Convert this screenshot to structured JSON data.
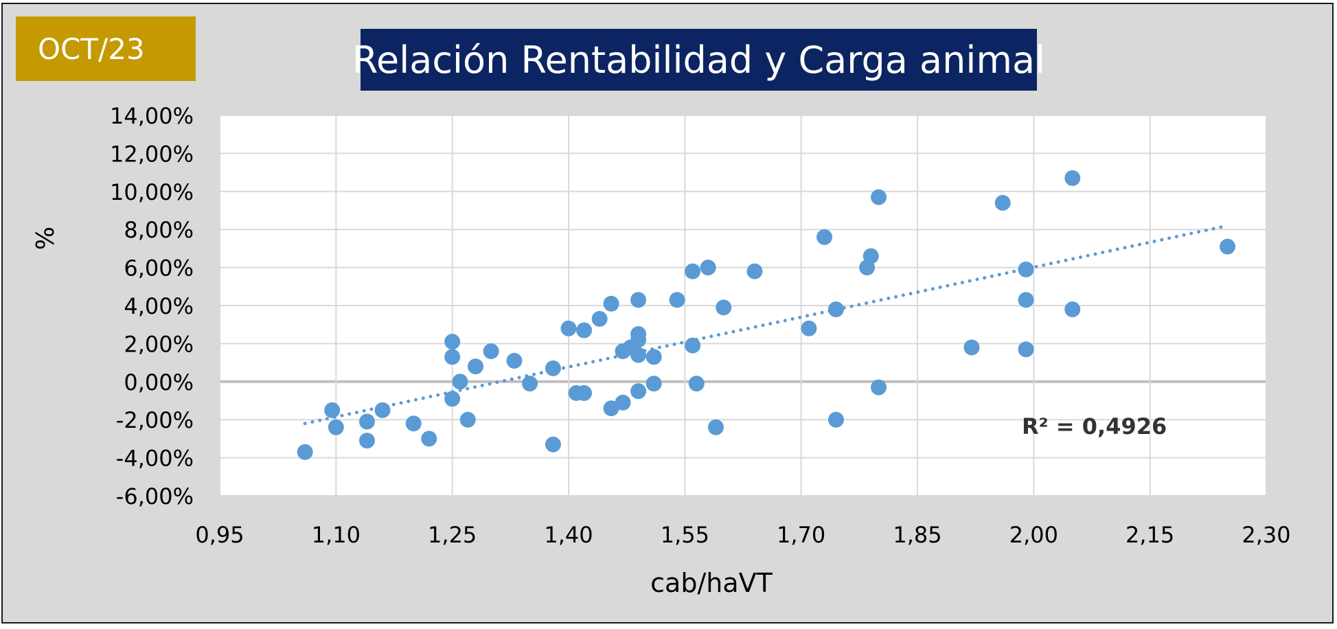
{
  "badge": {
    "label": "OCT/23"
  },
  "chart_data": {
    "type": "scatter",
    "title": "Relación Rentabilidad y Carga animal",
    "xlabel": "cab/haVT",
    "ylabel": "%",
    "xlim": [
      0.95,
      2.3
    ],
    "ylim": [
      -6,
      14
    ],
    "x_ticks": [
      0.95,
      1.1,
      1.25,
      1.4,
      1.55,
      1.7,
      1.85,
      2.0,
      2.15,
      2.3
    ],
    "x_tick_labels": [
      "0,95",
      "1,10",
      "1,25",
      "1,40",
      "1,55",
      "1,70",
      "1,85",
      "2,00",
      "2,15",
      "2,30"
    ],
    "y_ticks": [
      -6,
      -4,
      -2,
      0,
      2,
      4,
      6,
      8,
      10,
      12,
      14
    ],
    "y_tick_labels": [
      "-6,00%",
      "-4,00%",
      "-2,00%",
      "0,00%",
      "2,00%",
      "4,00%",
      "6,00%",
      "8,00%",
      "10,00%",
      "12,00%",
      "14,00%"
    ],
    "grid": true,
    "colors": {
      "points": "#5b9bd5",
      "trendline": "#5b9bd5",
      "zero_line": "#bfbfbf",
      "grid": "#d9d9d9"
    },
    "points": [
      [
        1.06,
        -3.7
      ],
      [
        1.095,
        -1.5
      ],
      [
        1.1,
        -2.4
      ],
      [
        1.14,
        -2.1
      ],
      [
        1.14,
        -3.1
      ],
      [
        1.16,
        -1.5
      ],
      [
        1.2,
        -2.2
      ],
      [
        1.22,
        -3.0
      ],
      [
        1.25,
        2.1
      ],
      [
        1.25,
        1.3
      ],
      [
        1.25,
        -0.9
      ],
      [
        1.26,
        0.0
      ],
      [
        1.27,
        -2.0
      ],
      [
        1.28,
        0.8
      ],
      [
        1.3,
        1.6
      ],
      [
        1.33,
        1.1
      ],
      [
        1.35,
        -0.1
      ],
      [
        1.38,
        0.7
      ],
      [
        1.38,
        -3.3
      ],
      [
        1.4,
        2.8
      ],
      [
        1.41,
        -0.6
      ],
      [
        1.42,
        2.7
      ],
      [
        1.42,
        -0.6
      ],
      [
        1.44,
        3.3
      ],
      [
        1.455,
        4.1
      ],
      [
        1.455,
        -1.4
      ],
      [
        1.47,
        1.6
      ],
      [
        1.47,
        -1.1
      ],
      [
        1.48,
        1.8
      ],
      [
        1.49,
        4.3
      ],
      [
        1.49,
        2.5
      ],
      [
        1.49,
        2.2
      ],
      [
        1.49,
        1.4
      ],
      [
        1.49,
        -0.5
      ],
      [
        1.51,
        1.3
      ],
      [
        1.51,
        -0.1
      ],
      [
        1.54,
        4.3
      ],
      [
        1.56,
        5.8
      ],
      [
        1.56,
        1.9
      ],
      [
        1.565,
        -0.1
      ],
      [
        1.58,
        6.0
      ],
      [
        1.59,
        -2.4
      ],
      [
        1.6,
        3.9
      ],
      [
        1.64,
        5.8
      ],
      [
        1.71,
        2.8
      ],
      [
        1.73,
        7.6
      ],
      [
        1.745,
        3.8
      ],
      [
        1.745,
        -2.0
      ],
      [
        1.785,
        6.0
      ],
      [
        1.79,
        6.6
      ],
      [
        1.8,
        9.7
      ],
      [
        1.8,
        -0.3
      ],
      [
        1.92,
        1.8
      ],
      [
        1.96,
        9.4
      ],
      [
        1.99,
        5.9
      ],
      [
        1.99,
        4.3
      ],
      [
        1.99,
        1.7
      ],
      [
        2.05,
        10.7
      ],
      [
        2.05,
        3.8
      ],
      [
        2.25,
        7.1
      ]
    ],
    "trendline": {
      "type": "linear",
      "style": "dotted",
      "x_range": [
        1.06,
        2.25
      ],
      "y_range": [
        -2.2,
        8.2
      ]
    },
    "r_squared_label": "R² = 0,4926"
  }
}
